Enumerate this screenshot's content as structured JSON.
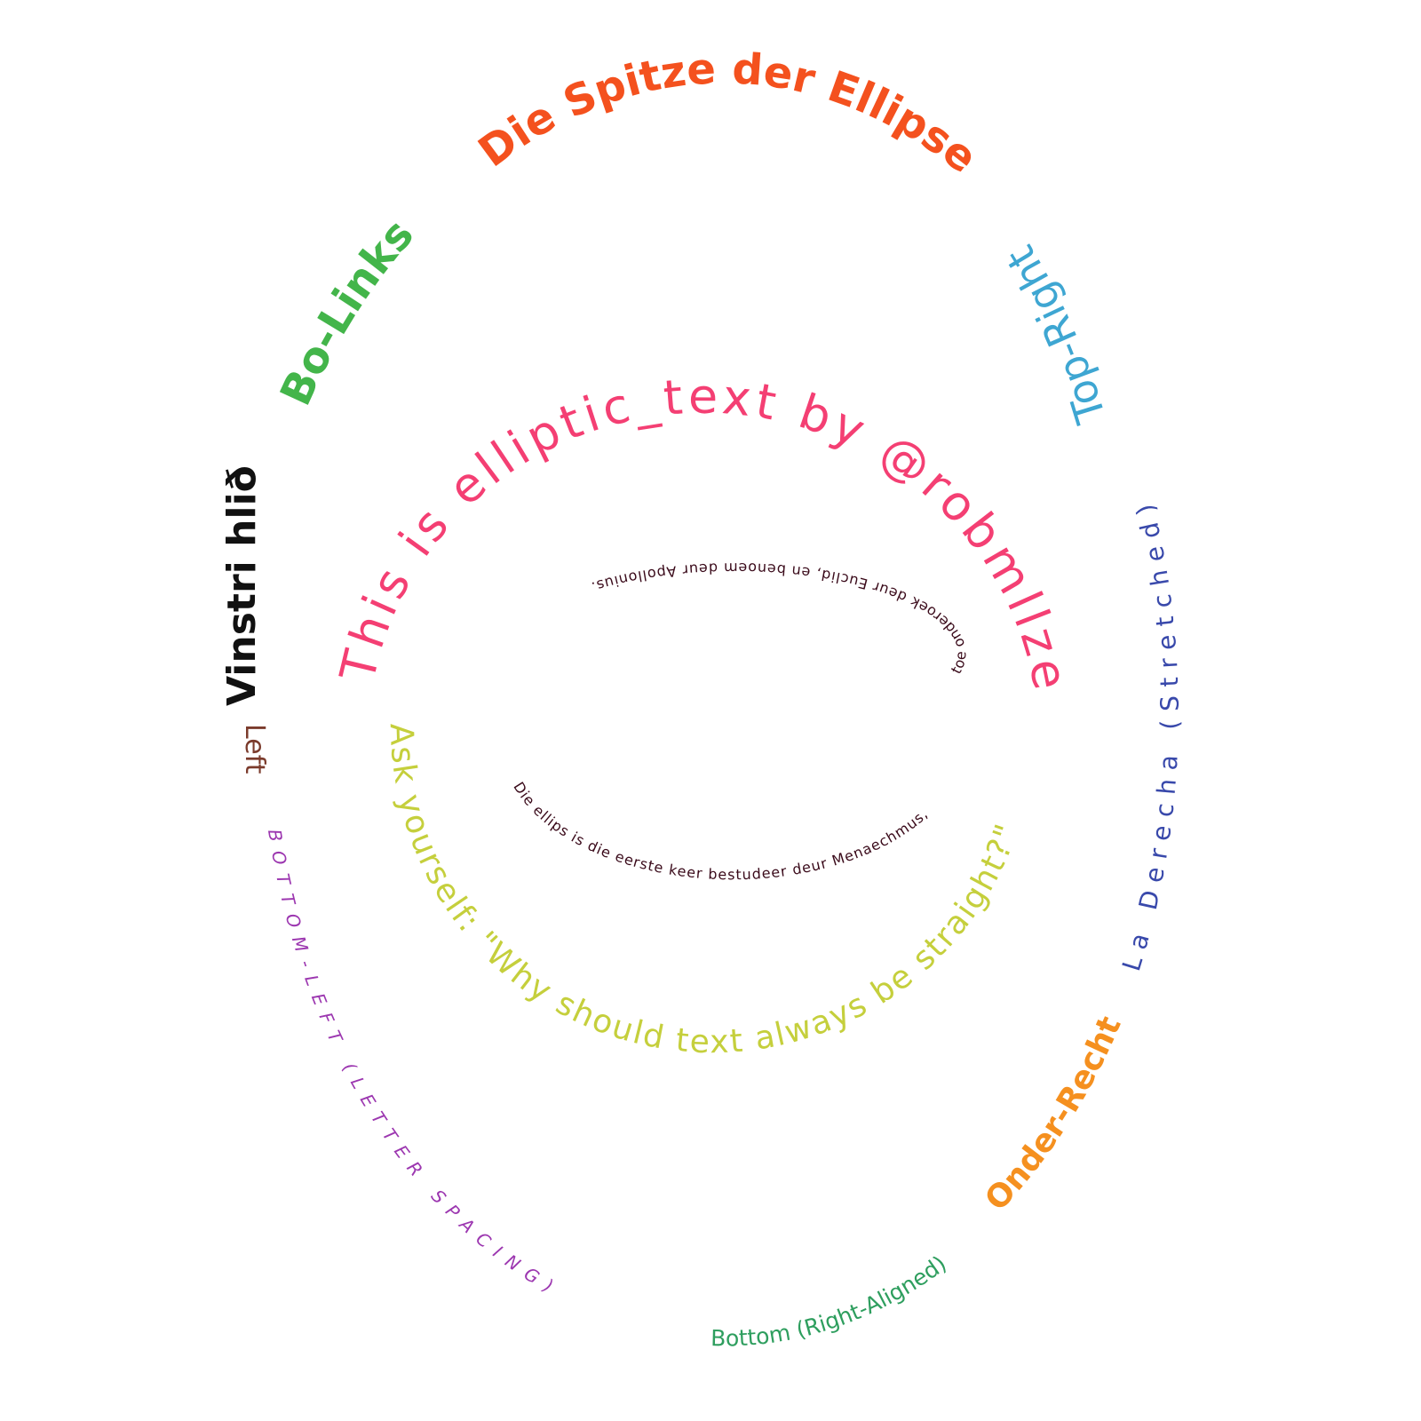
{
  "labels": {
    "top": {
      "text": "Die Spitze der Ellipse",
      "color": "#f4511e"
    },
    "top_left": {
      "text": "Bo-Links",
      "color": "#43b54a"
    },
    "top_right": {
      "text": "Top-Right",
      "color": "#3ea6d2"
    },
    "left": {
      "text": "Vinstri hlið",
      "color": "#111111"
    },
    "left_small": {
      "text": "Left",
      "color": "#7b3b2c"
    },
    "right": {
      "text": "La Derecha (Stretched)",
      "color": "#3949ab"
    },
    "bottom_left": {
      "text": "BOTTOM-LEFT (LETTER SPACING)",
      "color": "#9c37b0"
    },
    "bottom": {
      "text": "Bottom (Right-Aligned)",
      "color": "#2e9e5e"
    },
    "bottom_right": {
      "text": "Onder-Rechts",
      "color": "#f5901f"
    },
    "middle_top": {
      "text": "This is elliptic_text by @robmllze",
      "color": "#f43f73"
    },
    "middle_bottom": {
      "text": "Ask yourself: \"Why should text always be straight?\"",
      "color": "#c5cf3c"
    },
    "inner_top": {
      "text": "onderoek deur Euclid, en benoem deur Apollonius.",
      "color": "#3a0a1a"
    },
    "inner_right": {
      "text": "toe ",
      "color": "#3a0a1a"
    },
    "inner_bottom": {
      "text": "Die ellips is die eerste keer bestudeer deur Menaechmus,",
      "color": "#3a0a1a"
    }
  }
}
